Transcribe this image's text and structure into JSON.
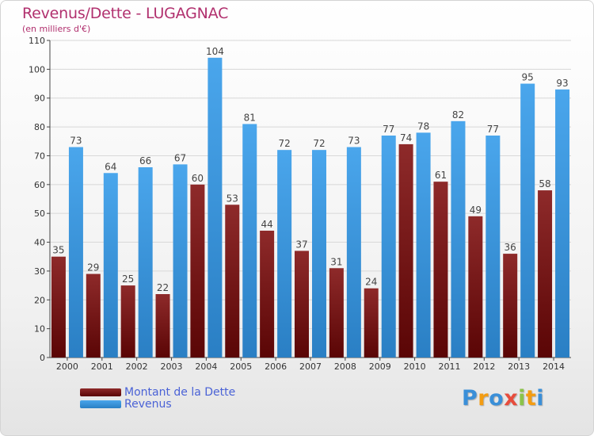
{
  "title": "Revenus/Dette - LUGAGNAC",
  "subtitle": "(en milliers d'€)",
  "chart_data": {
    "type": "bar",
    "title": "Revenus/Dette - LUGAGNAC",
    "subtitle": "(en milliers d'€)",
    "categories": [
      "2000",
      "2001",
      "2002",
      "2003",
      "2004",
      "2005",
      "2006",
      "2007",
      "2008",
      "2009",
      "2010",
      "2011",
      "2012",
      "2013",
      "2014"
    ],
    "series": [
      {
        "name": "Montant de la Dette",
        "color": "#7a1414",
        "values": [
          35,
          29,
          25,
          22,
          60,
          53,
          44,
          37,
          31,
          24,
          74,
          61,
          49,
          36,
          58
        ]
      },
      {
        "name": "Revenus",
        "color": "#3d9be0",
        "values": [
          73,
          64,
          66,
          67,
          104,
          81,
          72,
          72,
          73,
          77,
          78,
          82,
          77,
          95,
          93
        ]
      }
    ],
    "ylim": [
      0,
      110
    ],
    "yticks": [
      0,
      10,
      20,
      30,
      40,
      50,
      60,
      70,
      80,
      90,
      100,
      110
    ],
    "grid": true,
    "legend": "bottom-left"
  },
  "legend": {
    "items": [
      {
        "label": "Montant de la Dette",
        "color": "#6b1010"
      },
      {
        "label": "Revenus",
        "color": "#3d9be0"
      }
    ]
  },
  "logo": {
    "text": "Proxiti",
    "letters": [
      "P",
      "r",
      "o",
      "x",
      "i",
      "t",
      "i"
    ],
    "colors": [
      "#3a8fd8",
      "#f39c12",
      "#3a8fd8",
      "#e74c3c",
      "#8bc34a",
      "#f39c12",
      "#3a8fd8"
    ]
  }
}
